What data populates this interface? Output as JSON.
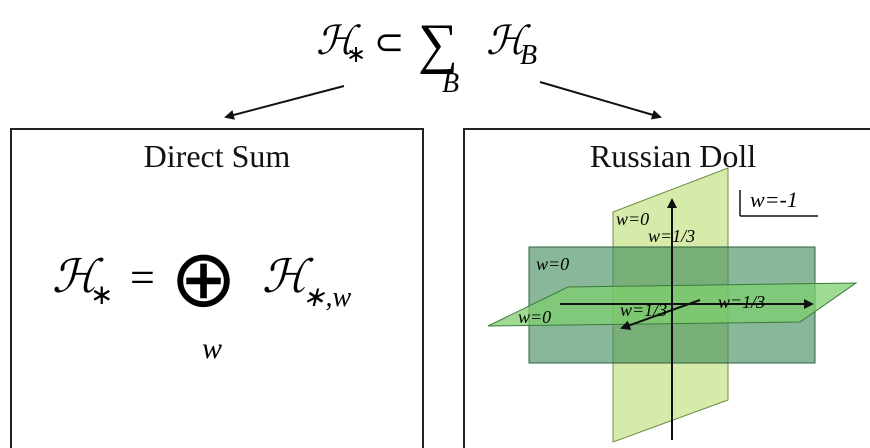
{
  "top_formula": {
    "lhs": "ℋ",
    "lhs_sub": "∗",
    "subset": "⊂",
    "sum": "∑",
    "sum_index": "B",
    "rhs": "ℋ",
    "rhs_sub": "B"
  },
  "left_panel": {
    "title": "Direct Sum",
    "lhs": "ℋ",
    "lhs_sub": "∗",
    "equals": "=",
    "oplus": "⊕",
    "oplus_index": "w",
    "rhs": "ℋ",
    "rhs_sub": "∗,w"
  },
  "right_panel": {
    "title": "Russian Doll",
    "legend": "w=-1",
    "labels": {
      "vertical_plane_w0": "w=0",
      "vertical_plane_w13": "w=1/3",
      "back_plane_w0": "w=0",
      "floor_plane_w0": "w=0",
      "center_w13": "w=1/3",
      "right_w13": "w=1/3"
    }
  },
  "colors": {
    "light_green": "#d6eaa9",
    "mid_green": "#7fbf7f",
    "dark_green": "#3f8a5c",
    "ink": "#111111"
  }
}
